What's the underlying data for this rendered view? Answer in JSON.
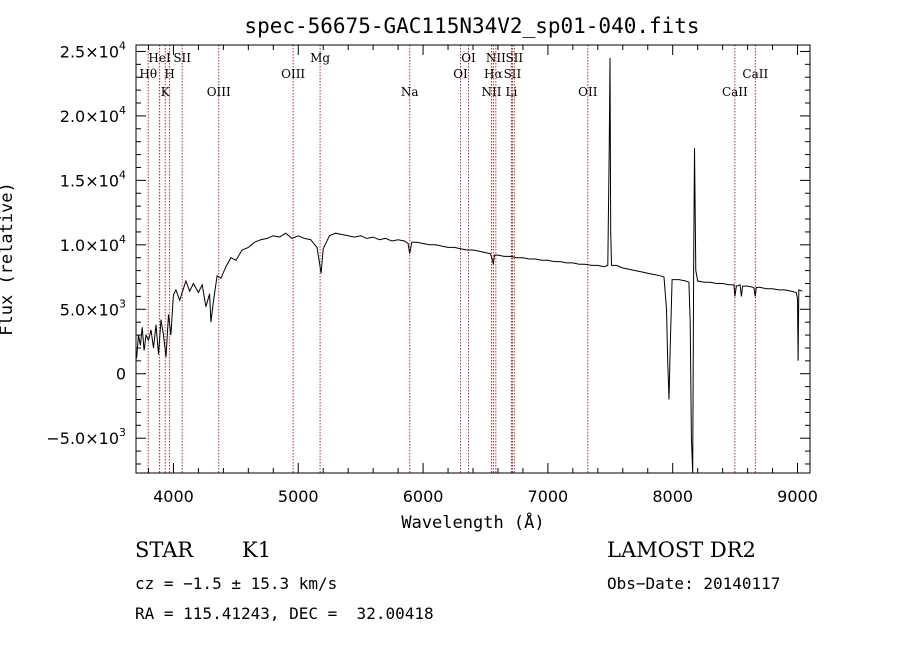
{
  "chart_data": {
    "type": "line",
    "title": "spec-56675-GAC115N34V2_sp01-040.fits",
    "xlabel": "Wavelength (Å)",
    "ylabel": "Flux (relative)",
    "xlim": [
      3700,
      9100
    ],
    "ylim": [
      -7700,
      25500
    ],
    "x_ticks": [
      {
        "v": 4000,
        "label": "4000"
      },
      {
        "v": 5000,
        "label": "5000"
      },
      {
        "v": 6000,
        "label": "6000"
      },
      {
        "v": 7000,
        "label": "7000"
      },
      {
        "v": 8000,
        "label": "8000"
      },
      {
        "v": 9000,
        "label": "9000"
      }
    ],
    "y_ticks": [
      {
        "v": -5000,
        "mant": "−5.0×10",
        "exp": "3"
      },
      {
        "v": 0,
        "mant": "0",
        "exp": ""
      },
      {
        "v": 5000,
        "mant": "5.0×10",
        "exp": "3"
      },
      {
        "v": 10000,
        "mant": "1.0×10",
        "exp": "4"
      },
      {
        "v": 15000,
        "mant": "1.5×10",
        "exp": "4"
      },
      {
        "v": 20000,
        "mant": "2.0×10",
        "exp": "4"
      },
      {
        "v": 25000,
        "mant": "2.5×10",
        "exp": "4"
      }
    ],
    "grid": false,
    "spectral_lines": [
      {
        "label": "Hθ",
        "x": 3798,
        "row": 2
      },
      {
        "label": "HeI",
        "x": 3889,
        "row": 1
      },
      {
        "label": "K",
        "x": 3934,
        "row": 3
      },
      {
        "label": "SII",
        "x": 4070,
        "row": 1
      },
      {
        "label": "H",
        "x": 3969,
        "row": 2
      },
      {
        "label": "OIII",
        "x": 4363,
        "row": 3
      },
      {
        "label": "OIII",
        "x": 4959,
        "row": 2
      },
      {
        "label": "Mg",
        "x": 5175,
        "row": 1
      },
      {
        "label": "Na",
        "x": 5893,
        "row": 3
      },
      {
        "label": "OI",
        "x": 6300,
        "row": 2
      },
      {
        "label": "OI",
        "x": 6364,
        "row": 1
      },
      {
        "label": "NII",
        "x": 6548,
        "row": 3
      },
      {
        "label": "Hα",
        "x": 6563,
        "row": 2
      },
      {
        "label": "NII",
        "x": 6583,
        "row": 1
      },
      {
        "label": "Li",
        "x": 6708,
        "row": 3
      },
      {
        "label": "SII",
        "x": 6716,
        "row": 2
      },
      {
        "label": "SII",
        "x": 6731,
        "row": 1
      },
      {
        "label": "OII",
        "x": 7320,
        "row": 3
      },
      {
        "label": "CaII",
        "x": 8498,
        "row": 3
      },
      {
        "label": "CaII",
        "x": 8662,
        "row": 2
      }
    ],
    "series": [
      {
        "color": "#000000",
        "points": [
          [
            3705,
            1200
          ],
          [
            3720,
            3000
          ],
          [
            3735,
            2200
          ],
          [
            3750,
            3600
          ],
          [
            3765,
            1800
          ],
          [
            3780,
            3000
          ],
          [
            3800,
            2600
          ],
          [
            3820,
            3400
          ],
          [
            3840,
            2000
          ],
          [
            3860,
            3800
          ],
          [
            3880,
            1500
          ],
          [
            3900,
            4200
          ],
          [
            3920,
            3000
          ],
          [
            3940,
            1300
          ],
          [
            3960,
            4600
          ],
          [
            3980,
            3000
          ],
          [
            4000,
            6100
          ],
          [
            4020,
            6500
          ],
          [
            4050,
            5700
          ],
          [
            4080,
            6600
          ],
          [
            4100,
            7200
          ],
          [
            4130,
            6400
          ],
          [
            4160,
            7000
          ],
          [
            4200,
            6300
          ],
          [
            4230,
            6900
          ],
          [
            4260,
            5200
          ],
          [
            4290,
            6200
          ],
          [
            4300,
            4000
          ],
          [
            4320,
            5600
          ],
          [
            4350,
            7600
          ],
          [
            4380,
            7400
          ],
          [
            4420,
            8300
          ],
          [
            4460,
            9000
          ],
          [
            4500,
            8800
          ],
          [
            4550,
            9600
          ],
          [
            4600,
            9800
          ],
          [
            4650,
            10200
          ],
          [
            4700,
            10400
          ],
          [
            4750,
            10500
          ],
          [
            4800,
            10700
          ],
          [
            4850,
            10600
          ],
          [
            4900,
            10900
          ],
          [
            4950,
            10500
          ],
          [
            5000,
            10700
          ],
          [
            5050,
            10500
          ],
          [
            5100,
            10400
          ],
          [
            5150,
            9800
          ],
          [
            5170,
            8600
          ],
          [
            5183,
            7800
          ],
          [
            5200,
            9700
          ],
          [
            5250,
            10700
          ],
          [
            5300,
            10900
          ],
          [
            5350,
            10800
          ],
          [
            5400,
            10700
          ],
          [
            5450,
            10600
          ],
          [
            5500,
            10700
          ],
          [
            5550,
            10500
          ],
          [
            5600,
            10600
          ],
          [
            5650,
            10400
          ],
          [
            5700,
            10500
          ],
          [
            5750,
            10300
          ],
          [
            5800,
            10400
          ],
          [
            5850,
            10300
          ],
          [
            5880,
            10100
          ],
          [
            5893,
            9300
          ],
          [
            5910,
            10200
          ],
          [
            5950,
            10200
          ],
          [
            6000,
            10100
          ],
          [
            6050,
            10000
          ],
          [
            6100,
            10000
          ],
          [
            6150,
            9900
          ],
          [
            6200,
            9800
          ],
          [
            6250,
            9800
          ],
          [
            6300,
            9700
          ],
          [
            6350,
            9600
          ],
          [
            6400,
            9600
          ],
          [
            6450,
            9500
          ],
          [
            6500,
            9400
          ],
          [
            6540,
            9300
          ],
          [
            6556,
            8800
          ],
          [
            6563,
            8500
          ],
          [
            6572,
            9200
          ],
          [
            6600,
            9200
          ],
          [
            6650,
            9100
          ],
          [
            6700,
            9100
          ],
          [
            6750,
            9000
          ],
          [
            6800,
            9000
          ],
          [
            6850,
            8900
          ],
          [
            6900,
            8900
          ],
          [
            6950,
            8800
          ],
          [
            7000,
            8800
          ],
          [
            7050,
            8700
          ],
          [
            7100,
            8700
          ],
          [
            7150,
            8600
          ],
          [
            7200,
            8600
          ],
          [
            7250,
            8500
          ],
          [
            7300,
            8500
          ],
          [
            7350,
            8400
          ],
          [
            7400,
            8400
          ],
          [
            7450,
            8300
          ],
          [
            7480,
            8400
          ],
          [
            7492,
            18000
          ],
          [
            7498,
            24500
          ],
          [
            7503,
            11000
          ],
          [
            7510,
            8400
          ],
          [
            7550,
            8400
          ],
          [
            7600,
            8200
          ],
          [
            7650,
            8100
          ],
          [
            7700,
            8000
          ],
          [
            7750,
            7900
          ],
          [
            7800,
            7800
          ],
          [
            7850,
            7700
          ],
          [
            7900,
            7600
          ],
          [
            7930,
            7500
          ],
          [
            7950,
            5000
          ],
          [
            7960,
            1000
          ],
          [
            7970,
            -2000
          ],
          [
            7980,
            2000
          ],
          [
            7995,
            7300
          ],
          [
            8050,
            7300
          ],
          [
            8100,
            7200
          ],
          [
            8130,
            7100
          ],
          [
            8140,
            4000
          ],
          [
            8150,
            -5000
          ],
          [
            8160,
            -7700
          ],
          [
            8168,
            9000
          ],
          [
            8175,
            17500
          ],
          [
            8185,
            8000
          ],
          [
            8200,
            7200
          ],
          [
            8250,
            7100
          ],
          [
            8300,
            7100
          ],
          [
            8350,
            7000
          ],
          [
            8400,
            7000
          ],
          [
            8450,
            6900
          ],
          [
            8490,
            6900
          ],
          [
            8498,
            6000
          ],
          [
            8510,
            6800
          ],
          [
            8540,
            6900
          ],
          [
            8550,
            6000
          ],
          [
            8560,
            6800
          ],
          [
            8600,
            6800
          ],
          [
            8650,
            6700
          ],
          [
            8662,
            6000
          ],
          [
            8670,
            6700
          ],
          [
            8700,
            6700
          ],
          [
            8750,
            6600
          ],
          [
            8800,
            6600
          ],
          [
            8850,
            6500
          ],
          [
            8900,
            6500
          ],
          [
            8950,
            6400
          ],
          [
            8990,
            6300
          ],
          [
            9000,
            5800
          ],
          [
            9005,
            1000
          ],
          [
            9010,
            6500
          ],
          [
            9040,
            6400
          ]
        ]
      }
    ]
  },
  "info": {
    "object_type": "STAR",
    "subclass": "K1",
    "survey": "LAMOST DR2",
    "cz": "cz = −1.5 ± 15.3 km/s",
    "obs_date": "Obs−Date: 20140117",
    "coords": "RA = 115.41243, DEC =  32.00418"
  },
  "colors": {
    "spectral_line": "#b03030",
    "data": "#000000",
    "axis": "#000000"
  }
}
